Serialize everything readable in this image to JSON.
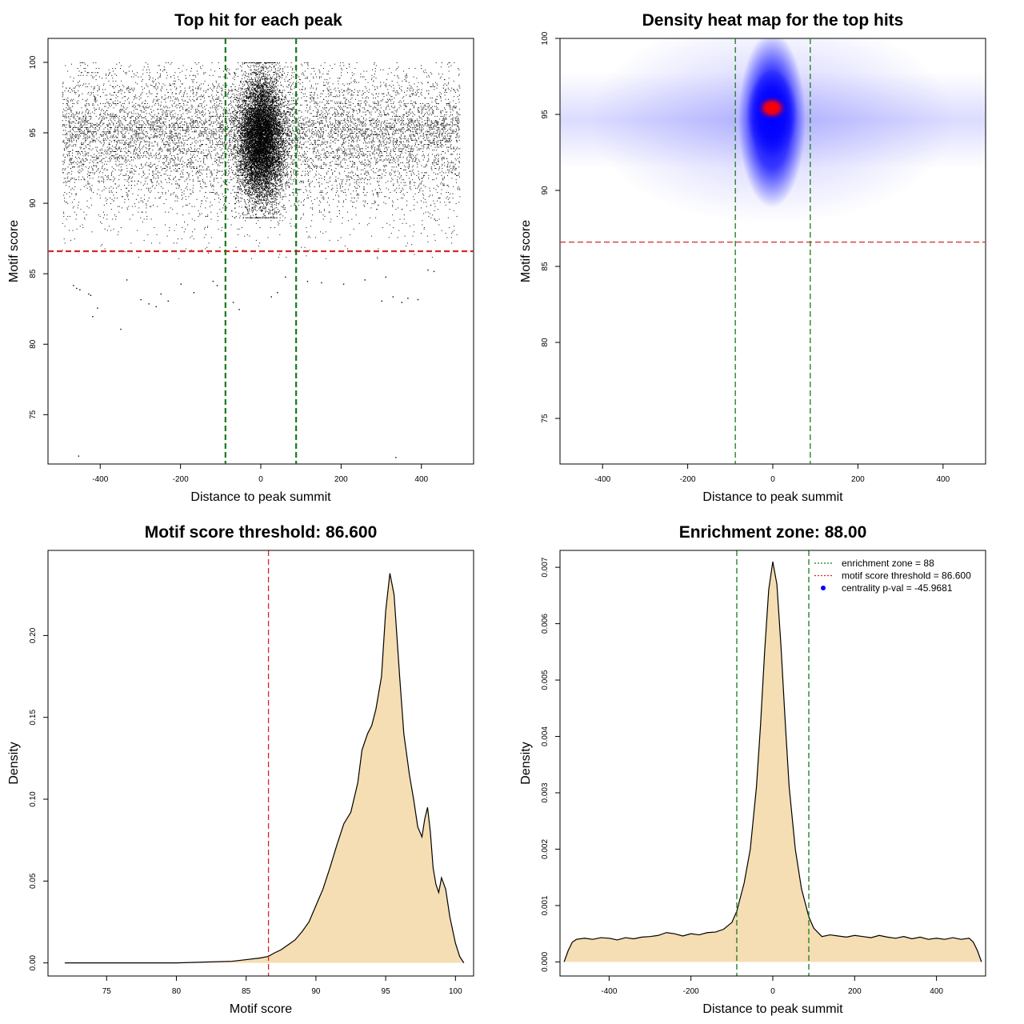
{
  "chart_data": [
    {
      "type": "scatter",
      "title": "Top hit for each peak",
      "xlabel": "Distance to peak summit",
      "ylabel": "Motif score",
      "xlim": [
        -530,
        530
      ],
      "ylim": [
        71.5,
        101.7
      ],
      "xticks": [
        -400,
        -200,
        0,
        200,
        400
      ],
      "yticks": [
        75,
        80,
        85,
        90,
        95,
        100
      ],
      "hlines": [
        {
          "y": 86.6,
          "color": "#d62728",
          "style": "dashed"
        }
      ],
      "vlines": [
        {
          "x": -88,
          "color": "#1a7a1a",
          "style": "dashed"
        },
        {
          "x": 88,
          "color": "#1a7a1a",
          "style": "dashed"
        }
      ],
      "points_description_note": "",
      "outliers": {
        "x": [
          -455,
          -468,
          -460,
          -452,
          -430,
          -425,
          -420,
          -408,
          -350,
          -335,
          -300,
          -280,
          -262,
          -250,
          -232,
          -200,
          -168,
          -120,
          -110,
          -70,
          -55,
          25,
          40,
          60,
          115,
          150,
          205,
          258,
          300,
          310,
          328,
          350,
          365,
          390,
          415,
          430,
          335
        ],
        "y": [
          72.1,
          84.2,
          84.0,
          83.9,
          83.6,
          83.5,
          82.0,
          82.6,
          81.1,
          84.6,
          83.2,
          82.9,
          82.7,
          83.6,
          83.1,
          84.3,
          83.7,
          84.5,
          84.2,
          83.0,
          82.5,
          83.4,
          83.7,
          84.8,
          84.5,
          84.4,
          84.3,
          84.6,
          83.1,
          84.8,
          83.4,
          83.0,
          83.3,
          83.2,
          85.3,
          85.2,
          72.0
        ]
      }
    },
    {
      "type": "heatmap",
      "title": "Density heat map for the top hits",
      "xlabel": "Distance to peak summit",
      "ylabel": "Motif score",
      "xlim": [
        -500,
        500
      ],
      "ylim": [
        72,
        100
      ],
      "xticks": [
        -400,
        -200,
        0,
        200,
        400
      ],
      "yticks": [
        75,
        80,
        85,
        90,
        95,
        100
      ],
      "peak": {
        "x": 0,
        "y": 95.5
      },
      "colors": [
        "#ffffff",
        "#0000ff",
        "#ff0000"
      ],
      "hlines": [
        {
          "y": 86.6,
          "color": "#d62728",
          "style": "dashed"
        }
      ],
      "vlines": [
        {
          "x": -88,
          "color": "#1a7a1a",
          "style": "dashed"
        },
        {
          "x": 88,
          "color": "#1a7a1a",
          "style": "dashed"
        }
      ]
    },
    {
      "type": "area",
      "title": "Motif score threshold: 86.600",
      "xlabel": "Motif score",
      "ylabel": "Density",
      "xlim": [
        70.8,
        101.3
      ],
      "ylim": [
        -0.008,
        0.252
      ],
      "xticks": [
        75,
        80,
        85,
        90,
        95,
        100
      ],
      "yticks": [
        0.0,
        0.05,
        0.1,
        0.15,
        0.2
      ],
      "ytick_labels": [
        "0.00",
        "0.05",
        "0.10",
        "0.15",
        "0.20"
      ],
      "fill": "#f5deb3",
      "series": [
        {
          "x": [
            72,
            80,
            84,
            85,
            86,
            86.6,
            87,
            87.5,
            88,
            88.5,
            89,
            89.5,
            90,
            90.5,
            91,
            91.5,
            92,
            92.5,
            93,
            93.3,
            93.7,
            94,
            94.3,
            94.7,
            95,
            95.3,
            95.6,
            96,
            96.3,
            96.7,
            97,
            97.3,
            97.6,
            97.8,
            98,
            98.2,
            98.4,
            98.6,
            98.8,
            99,
            99.3,
            99.6,
            100,
            100.3,
            100.6
          ],
          "y": [
            0,
            0,
            0.001,
            0.002,
            0.003,
            0.004,
            0.006,
            0.008,
            0.011,
            0.014,
            0.019,
            0.025,
            0.035,
            0.045,
            0.058,
            0.072,
            0.085,
            0.092,
            0.11,
            0.13,
            0.14,
            0.145,
            0.155,
            0.175,
            0.215,
            0.238,
            0.225,
            0.175,
            0.14,
            0.115,
            0.1,
            0.083,
            0.077,
            0.088,
            0.095,
            0.08,
            0.058,
            0.048,
            0.043,
            0.052,
            0.045,
            0.028,
            0.012,
            0.004,
            0.0
          ]
        }
      ],
      "vlines": [
        {
          "x": 86.6,
          "color": "#d62728",
          "style": "dashed"
        }
      ]
    },
    {
      "type": "area",
      "title": "Enrichment zone: 88.00",
      "xlabel": "Distance to peak summit",
      "ylabel": "Density",
      "xlim": [
        -520,
        520
      ],
      "ylim": [
        -0.00025,
        0.0073
      ],
      "xticks": [
        -400,
        -200,
        0,
        200,
        400
      ],
      "yticks": [
        0.0,
        0.001,
        0.002,
        0.003,
        0.004,
        0.005,
        0.006,
        0.007
      ],
      "ytick_labels": [
        "0.000",
        "0.001",
        "0.002",
        "0.003",
        "0.004",
        "0.005",
        "0.006",
        "0.007"
      ],
      "fill": "#f5deb3",
      "series": [
        {
          "x": [
            -510,
            -500,
            -490,
            -480,
            -460,
            -440,
            -420,
            -400,
            -380,
            -360,
            -340,
            -320,
            -300,
            -280,
            -260,
            -240,
            -220,
            -200,
            -180,
            -160,
            -140,
            -120,
            -100,
            -88,
            -70,
            -55,
            -40,
            -30,
            -20,
            -10,
            0,
            10,
            20,
            30,
            40,
            55,
            70,
            88,
            100,
            120,
            140,
            160,
            180,
            200,
            220,
            240,
            260,
            280,
            300,
            320,
            340,
            360,
            380,
            400,
            420,
            440,
            460,
            480,
            490,
            500,
            510
          ],
          "y": [
            0.0,
            0.0002,
            0.00035,
            0.0004,
            0.00042,
            0.0004,
            0.00043,
            0.00042,
            0.00039,
            0.00043,
            0.00041,
            0.00044,
            0.00045,
            0.00047,
            0.00052,
            0.0005,
            0.00046,
            0.0005,
            0.00048,
            0.00052,
            0.00053,
            0.00058,
            0.0007,
            0.0009,
            0.0014,
            0.002,
            0.0031,
            0.0042,
            0.0055,
            0.0066,
            0.0071,
            0.0067,
            0.0056,
            0.0043,
            0.0031,
            0.002,
            0.0013,
            0.0008,
            0.0006,
            0.00045,
            0.00048,
            0.00046,
            0.00044,
            0.00047,
            0.00045,
            0.00043,
            0.00047,
            0.00044,
            0.00042,
            0.00045,
            0.00041,
            0.00044,
            0.0004,
            0.00042,
            0.0004,
            0.00043,
            0.0004,
            0.00042,
            0.00035,
            0.0002,
            0.0
          ]
        }
      ],
      "vlines": [
        {
          "x": -88,
          "color": "#1a7a1a",
          "style": "dashed"
        },
        {
          "x": 88,
          "color": "#1a7a1a",
          "style": "dashed"
        }
      ],
      "legend": {
        "position": "top-right",
        "entries": [
          {
            "label": "enrichment zone = 88",
            "color": "#1a7a1a",
            "marker": "dotted-line"
          },
          {
            "label": "motif score threshold = 86.600",
            "color": "#d62728",
            "marker": "dotted-line"
          },
          {
            "label": "centrality p-val = -45.9681",
            "color": "#0000ff",
            "marker": "point"
          }
        ]
      }
    }
  ]
}
